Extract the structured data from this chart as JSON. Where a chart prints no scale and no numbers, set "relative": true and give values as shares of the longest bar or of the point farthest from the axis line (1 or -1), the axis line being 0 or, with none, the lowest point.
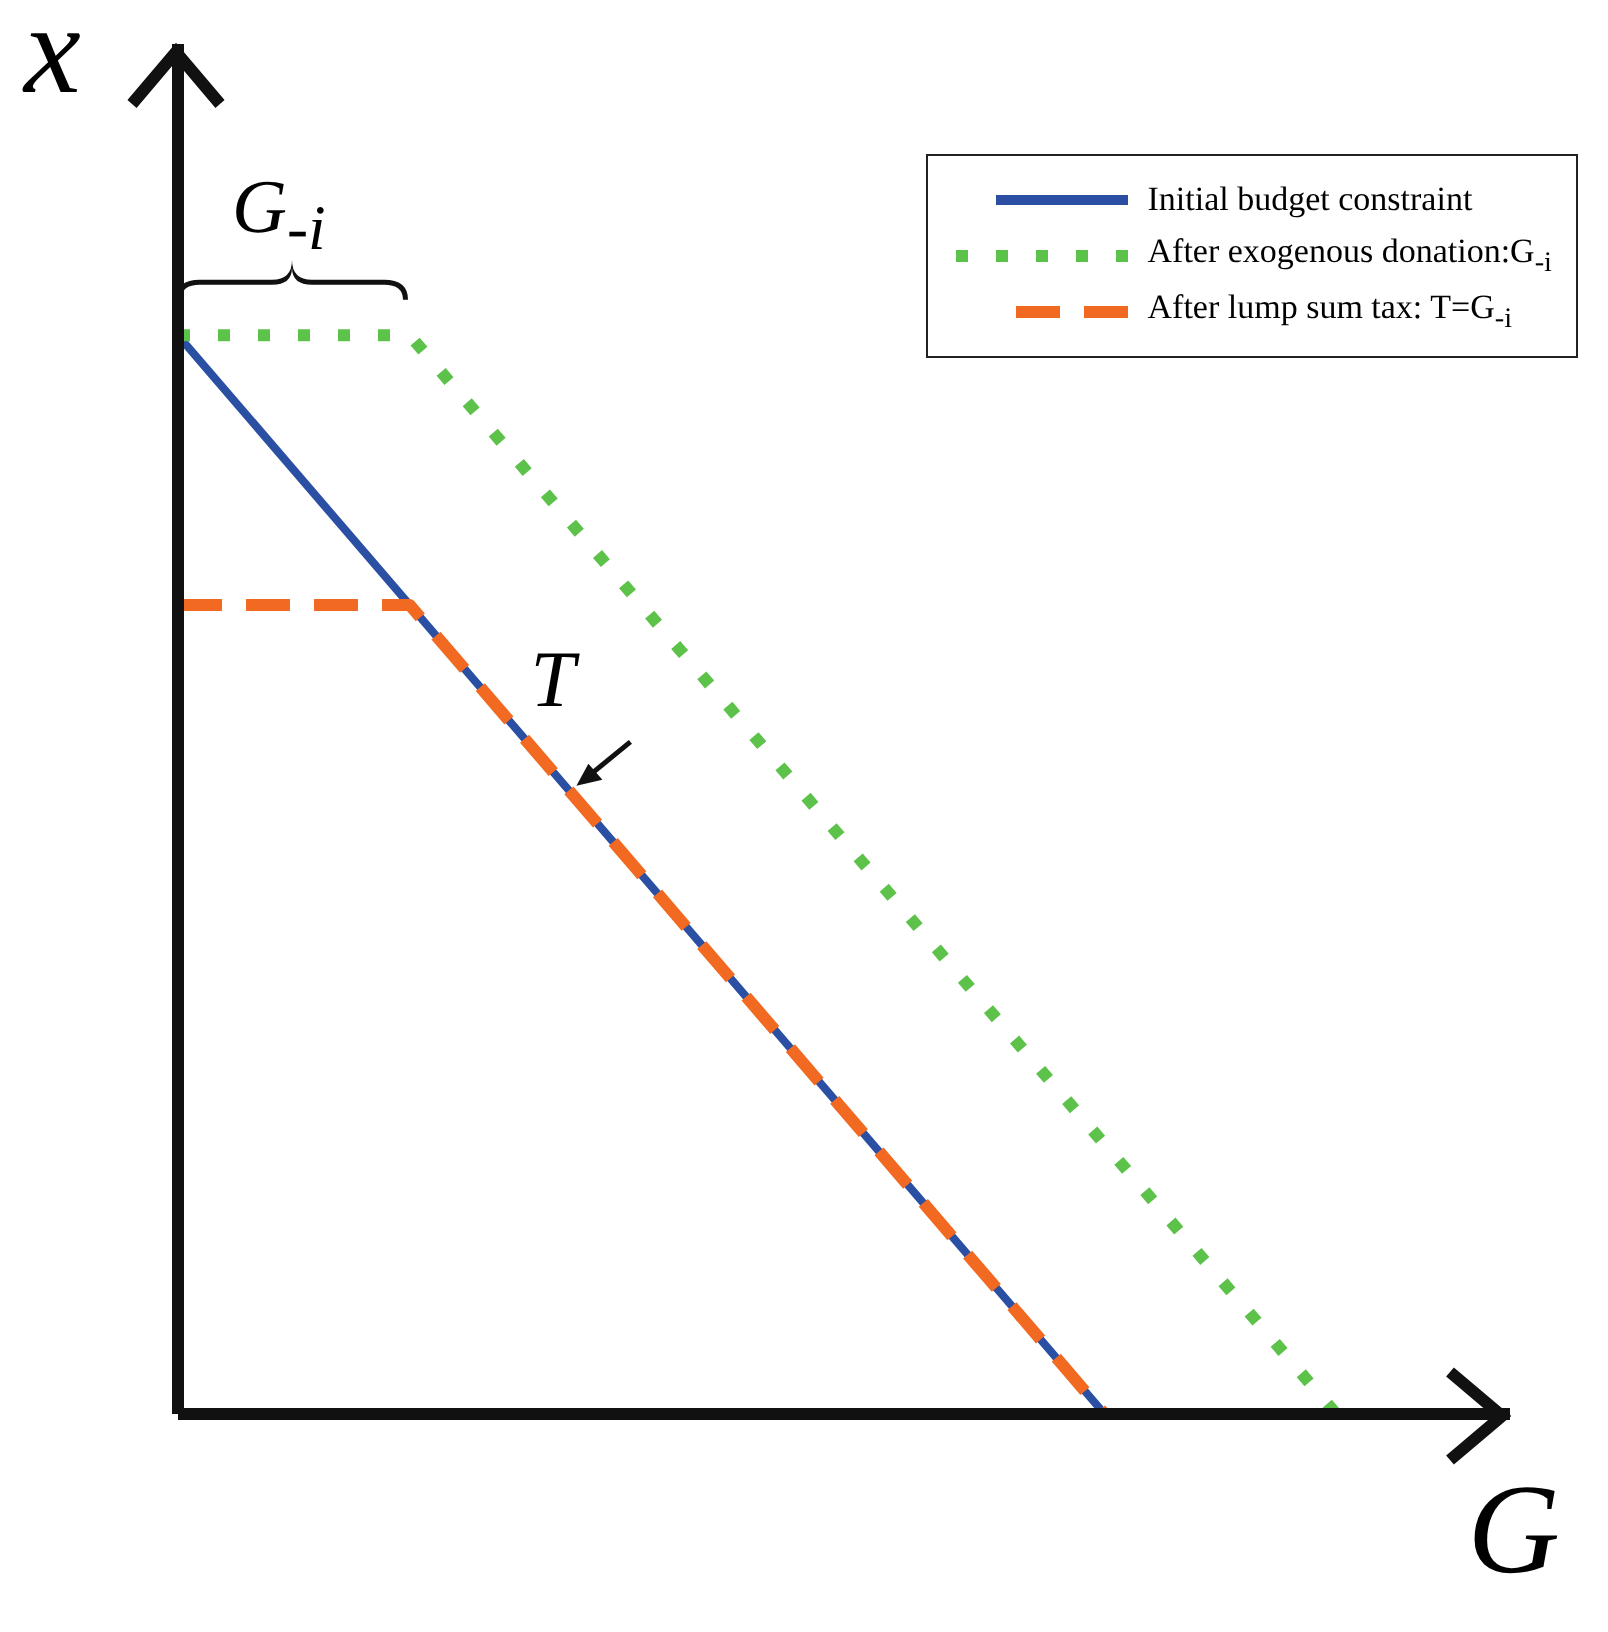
{
  "chart_data": {
    "type": "line",
    "relative": true,
    "xlabel": "G",
    "ylabel": "x",
    "legend": "top right",
    "annotations": [
      "G$_{-i}$",
      "T"
    ],
    "categories": [
      null,
      null,
      null,
      null,
      null,
      null
    ],
    "series": [
      {
        "name": "Initial budget constraint",
        "color": "#2a4fa3",
        "line_style": "solid",
        "values": [
          1,
          0.75,
          0.5,
          0.25,
          0,
          null
        ]
      },
      {
        "name": "After exogenous donation:G$_{-i}$",
        "color": "#5cc24a",
        "line_style": "dotted",
        "values": [
          1,
          1,
          0.75,
          0.5,
          0.25,
          0
        ]
      },
      {
        "name": "After lump sum tax: T=G$_{-i}$",
        "color": "#f26a21",
        "line_style": "dashed",
        "values": [
          0.75,
          0.75,
          0.5,
          0.25,
          0,
          null
        ]
      }
    ]
  }
}
